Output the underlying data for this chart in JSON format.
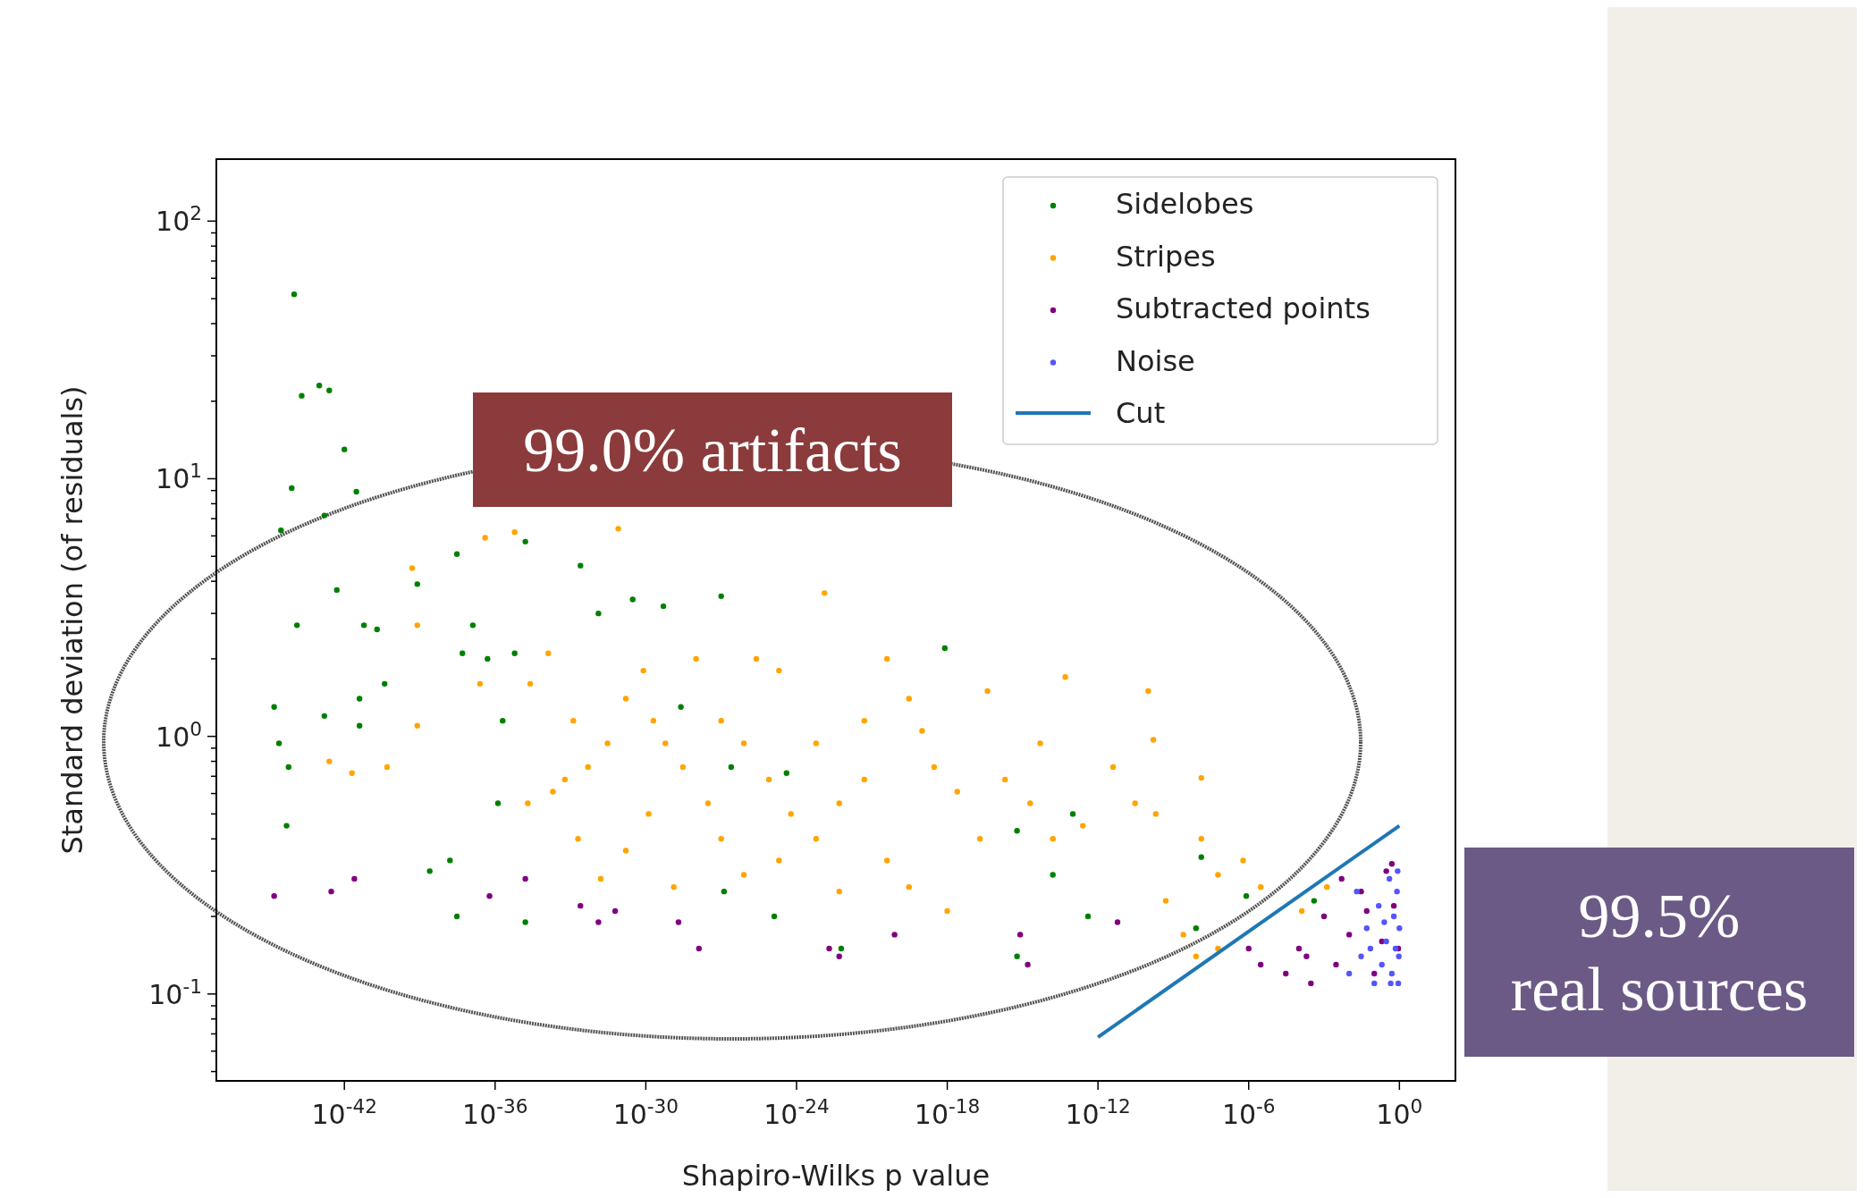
{
  "chart_data": {
    "type": "scatter",
    "xlabel": "Shapiro-Wilks p value",
    "ylabel": "Standard deviation  (of residuals)",
    "log": "xy",
    "grid": false,
    "legend": "top right",
    "marker": "circle",
    "xlim": [
      8e-48,
      170
    ],
    "ylim": [
      0.046,
      174
    ],
    "xticks": [
      {
        "value": 1e-42,
        "label": "10$^{-42}$"
      },
      {
        "value": 1e-36,
        "label": "10$^{-36}$"
      },
      {
        "value": 1e-30,
        "label": "10$^{-30}$"
      },
      {
        "value": 1e-24,
        "label": "10$^{-24}$"
      },
      {
        "value": 1e-18,
        "label": "10$^{-18}$"
      },
      {
        "value": 1e-12,
        "label": "10$^{-12}$"
      },
      {
        "value": 1e-06,
        "label": "10$^{-6}$"
      },
      {
        "value": 1,
        "label": "10$^{0}$"
      }
    ],
    "yticks": [
      {
        "value": 0.05,
        "label": null
      },
      {
        "value": 0.06,
        "label": null
      },
      {
        "value": 0.07,
        "label": null
      },
      {
        "value": 0.08,
        "label": null
      },
      {
        "value": 0.09,
        "label": null
      },
      {
        "value": 0.1,
        "label": "10$^{-1}$"
      },
      {
        "value": 0.2,
        "label": null
      },
      {
        "value": 0.3,
        "label": null
      },
      {
        "value": 0.4,
        "label": null
      },
      {
        "value": 0.5,
        "label": null
      },
      {
        "value": 0.6,
        "label": null
      },
      {
        "value": 0.7,
        "label": null
      },
      {
        "value": 0.8,
        "label": null
      },
      {
        "value": 0.9,
        "label": null
      },
      {
        "value": 1,
        "label": "10$^{0}$"
      },
      {
        "value": 2,
        "label": null
      },
      {
        "value": 3,
        "label": null
      },
      {
        "value": 4,
        "label": null
      },
      {
        "value": 5,
        "label": null
      },
      {
        "value": 6,
        "label": null
      },
      {
        "value": 7,
        "label": null
      },
      {
        "value": 8,
        "label": null
      },
      {
        "value": 9,
        "label": null
      },
      {
        "value": 10,
        "label": "10$^{1}$"
      },
      {
        "value": 20,
        "label": null
      },
      {
        "value": 30,
        "label": null
      },
      {
        "value": 40,
        "label": null
      },
      {
        "value": 50,
        "label": null
      },
      {
        "value": 60,
        "label": null
      },
      {
        "value": 70,
        "label": null
      },
      {
        "value": 80,
        "label": null
      },
      {
        "value": 90,
        "label": null
      },
      {
        "value": 100,
        "label": "10$^{2}$"
      }
    ],
    "annotations": [
      "99.0% artifacts",
      "99.5%\nreal sources"
    ],
    "series": [
      {
        "name": "Sidelobes",
        "color": "#008000",
        "x": [
          1e-44,
          2e-44,
          1e-43,
          2.5e-43,
          1e-42,
          8e-45,
          3e-42,
          3e-45,
          1.6e-43,
          5e-43,
          1.3e-44,
          1.6e-45,
          2.5e-45,
          6e-45,
          5e-45,
          1.6e-43,
          6e-42,
          2e-41,
          4e-42,
          4e-42,
          4e-41,
          8e-40,
          3e-38,
          1.3e-37,
          5e-38,
          5e-37,
          1.3e-36,
          2e-36,
          6e-36,
          1.6e-35,
          1.6e-35,
          3e-38,
          1.6e-38,
          2.5e-39,
          2.5e-33,
          1.3e-32,
          3e-31,
          5e-30,
          2.5e-29,
          1e-27,
          2.5e-27,
          1.3e-27,
          1.3e-25,
          4e-25,
          6e-23,
          8e-19,
          6e-16,
          6e-16,
          1.6e-14,
          1e-13,
          4e-13,
          1.3e-08,
          8e-09,
          8e-07,
          0.0004
        ],
        "values": [
          52,
          21,
          23,
          22,
          13,
          9.2,
          8.9,
          6.3,
          7.2,
          3.7,
          2.7,
          1.3,
          0.94,
          0.76,
          0.45,
          1.2,
          2.7,
          2.6,
          1.4,
          1.1,
          1.6,
          3.9,
          5.1,
          2.7,
          2.1,
          2,
          0.55,
          1.15,
          2.1,
          5.7,
          0.19,
          0.2,
          0.33,
          0.3,
          4.6,
          3,
          3.4,
          3.2,
          1.3,
          3.5,
          0.76,
          0.25,
          0.2,
          0.72,
          0.15,
          2.2,
          0.43,
          0.14,
          0.29,
          0.5,
          0.2,
          0.34,
          0.18,
          0.24,
          0.23
        ]
      },
      {
        "name": "Stripes",
        "color": "#ffa500",
        "x": [
          5e-40,
          8e-40,
          4e-37,
          6e-36,
          8e-32,
          2.5e-37,
          2.5e-43,
          2e-42,
          5e-41,
          8e-40,
          2.5e-35,
          1.3e-34,
          1.3e-33,
          2e-35,
          2e-34,
          6e-34,
          5e-33,
          3e-32,
          1.6e-31,
          8e-31,
          2e-30,
          6e-30,
          3e-29,
          1e-28,
          2.5e-26,
          2e-25,
          1e-27,
          8e-27,
          8e-26,
          6e-25,
          6e-24,
          5e-23,
          5e-22,
          1.3e-23,
          4e-21,
          3e-20,
          1e-19,
          3e-19,
          2.5e-18,
          2e-17,
          4e-17,
          2e-16,
          2e-15,
          5e-14,
          2.5e-13,
          3e-11,
          1e-10,
          1.6e-10,
          2e-10,
          1.3e-08,
          1.3e-08,
          6e-08,
          6e-07,
          3e-06,
          2.5e-09,
          6e-08,
          1e-27,
          8e-27,
          2e-25,
          1.3e-29,
          1.6e-31,
          2e-33,
          1.6e-32,
          4e-21,
          3e-20,
          1e-18,
          5e-23,
          3e-28,
          1.3e-30,
          5e-22,
          6e-24,
          5e-15,
          4e-12,
          1.6e-14,
          5e-10,
          0.00013,
          0.0013,
          8e-09
        ],
        "values": [
          4.5,
          2.7,
          5.9,
          6.2,
          6.4,
          1.6,
          0.8,
          0.72,
          0.76,
          1.1,
          1.6,
          2.1,
          1.15,
          0.55,
          0.61,
          0.68,
          0.76,
          0.94,
          1.4,
          1.8,
          1.15,
          0.94,
          0.76,
          2,
          2,
          1.8,
          1.15,
          0.94,
          0.68,
          0.5,
          0.4,
          0.55,
          0.68,
          3.6,
          2,
          1.4,
          1.05,
          0.76,
          0.61,
          0.4,
          1.5,
          0.68,
          0.55,
          1.7,
          0.45,
          0.55,
          1.5,
          0.97,
          0.5,
          0.69,
          0.4,
          0.29,
          0.33,
          0.26,
          0.17,
          0.15,
          0.4,
          0.29,
          0.33,
          0.26,
          0.36,
          0.4,
          0.28,
          0.33,
          0.26,
          0.21,
          0.25,
          0.55,
          0.5,
          1.15,
          0.94,
          0.94,
          0.76,
          0.4,
          0.23,
          0.21,
          0.26,
          0.14
        ]
      },
      {
        "name": "Subtracted points",
        "color": "#800080",
        "x": [
          1.6e-45,
          3e-43,
          2.5e-42,
          6e-37,
          1.6e-35,
          2.5e-33,
          1.3e-32,
          6e-32,
          2e-29,
          1.3e-28,
          2e-23,
          5e-23,
          8e-21,
          8e-16,
          1.6e-15,
          6e-12,
          1e-06,
          3e-06,
          3e-05,
          0.0001,
          0.0003,
          0.001,
          0.003,
          0.01,
          0.03,
          0.1,
          0.3,
          0.6,
          0.9,
          0.0002,
          0.005,
          0.05,
          0.2,
          0.5
        ],
        "values": [
          0.24,
          0.25,
          0.28,
          0.24,
          0.28,
          0.22,
          0.19,
          0.21,
          0.19,
          0.15,
          0.15,
          0.14,
          0.17,
          0.17,
          0.13,
          0.19,
          0.15,
          0.13,
          0.12,
          0.15,
          0.11,
          0.2,
          0.13,
          0.17,
          0.25,
          0.12,
          0.3,
          0.22,
          0.15,
          0.14,
          0.28,
          0.21,
          0.16,
          0.32
        ]
      },
      {
        "name": "Noise",
        "color": "#5555ff",
        "x": [
          0.01,
          0.03,
          0.05,
          0.1,
          0.15,
          0.2,
          0.3,
          0.4,
          0.5,
          0.6,
          0.7,
          0.8,
          0.9,
          1,
          0.95,
          0.85,
          0.02,
          0.07,
          0.25,
          0.45
        ],
        "values": [
          0.12,
          0.14,
          0.18,
          0.11,
          0.22,
          0.13,
          0.16,
          0.28,
          0.12,
          0.2,
          0.15,
          0.25,
          0.11,
          0.18,
          0.14,
          0.3,
          0.25,
          0.15,
          0.19,
          0.11
        ]
      },
      {
        "name": "Cut",
        "type": "line",
        "marker": "none",
        "color": "#1f77b4",
        "x": [
          1e-12,
          1
        ],
        "values": [
          0.068,
          0.45
        ]
      }
    ]
  }
}
